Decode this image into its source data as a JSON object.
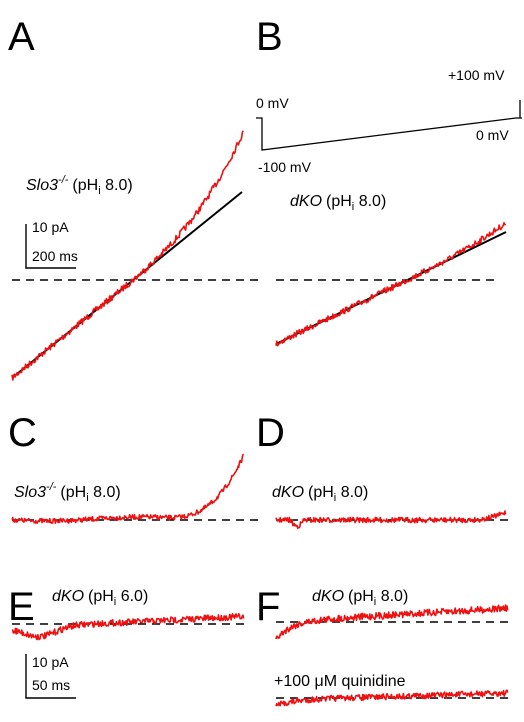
{
  "panels": {
    "A": {
      "letter": "A",
      "title_gene": "Slo3",
      "title_sup": "-/-",
      "title_ph": "pH",
      "title_sub": "i",
      "title_val": " 8.0)"
    },
    "B": {
      "letter": "B",
      "title_gene": "dKO",
      "title_ph": "(pH",
      "title_sub": "i",
      "title_val": " 8.0)"
    },
    "C": {
      "letter": "C",
      "title_gene": "Slo3",
      "title_sup": "-/-",
      "title_ph": "pH",
      "title_sub": "i",
      "title_val": " 8.0)"
    },
    "D": {
      "letter": "D",
      "title_gene": "dKO",
      "title_ph": "(pH",
      "title_sub": "i",
      "title_val": " 8.0)"
    },
    "E": {
      "letter": "E",
      "title_gene": "dKO",
      "title_ph": "(pH",
      "title_sub": "i",
      "title_val": " 6.0)"
    },
    "F": {
      "letter": "F",
      "title_gene": "dKO",
      "title_ph": "(pH",
      "title_sub": "i",
      "title_val": " 8.0)",
      "drug_label": "+100 μM quinidine"
    }
  },
  "protocol": {
    "v_hold": "0 mV",
    "v_start": "-100 mV",
    "v_end": "+100 mV",
    "v_return": "0 mV"
  },
  "scalebars": {
    "top": {
      "current": "10 pA",
      "time": "200 ms"
    },
    "bottom": {
      "current": "10 pA",
      "time": "50 ms"
    }
  },
  "colors": {
    "trace": "#ee1111",
    "fit": "#000000",
    "baseline": "#000000"
  }
}
